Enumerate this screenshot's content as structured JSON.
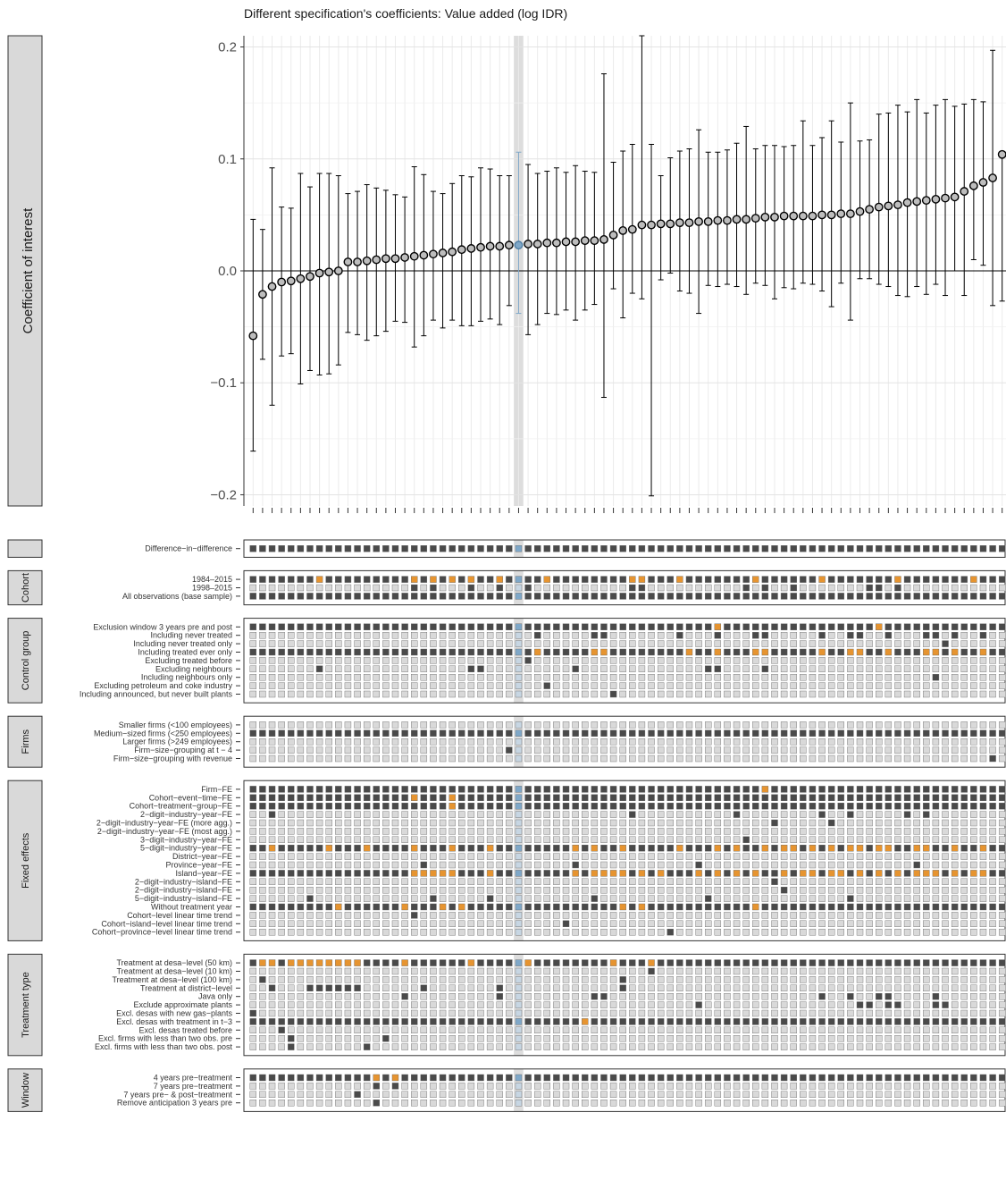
{
  "chart_data": {
    "type": "scatter",
    "title": "Different specification's coefficients: Value added (log IDR)",
    "ylabel": "Coefficient of interest",
    "ylim": [
      -0.21,
      0.21
    ],
    "yticks": [
      -0.2,
      -0.1,
      0.0,
      0.1,
      0.2
    ],
    "ytick_labels": [
      "−0.2",
      "−0.1",
      "0.0",
      "0.1",
      "0.2"
    ],
    "grid": true,
    "highlight_index": 28,
    "colors": {
      "point_fill": "#bdbdbd",
      "highlight": "#7fa8c9",
      "active": "#4a4a4a",
      "variant": "#e69430",
      "inactive": "#d9d9d9",
      "highlight_band": "#dddddd",
      "panel_strip": "#d9d9d9"
    },
    "series": [
      {
        "estimates": [
          -0.058,
          -0.021,
          -0.014,
          -0.01,
          -0.009,
          -0.007,
          -0.005,
          -0.002,
          -0.001,
          0.0,
          0.008,
          0.008,
          0.009,
          0.01,
          0.011,
          0.011,
          0.012,
          0.013,
          0.014,
          0.015,
          0.016,
          0.017,
          0.019,
          0.02,
          0.021,
          0.022,
          0.022,
          0.023,
          0.023,
          0.024,
          0.024,
          0.025,
          0.025,
          0.026,
          0.026,
          0.027,
          0.027,
          0.028,
          0.032,
          0.036,
          0.037,
          0.041,
          0.041,
          0.042,
          0.042,
          0.043,
          0.043,
          0.044,
          0.044,
          0.045,
          0.045,
          0.046,
          0.046,
          0.047,
          0.048,
          0.048,
          0.049,
          0.049,
          0.049,
          0.049,
          0.05,
          0.05,
          0.051,
          0.051,
          0.053,
          0.055,
          0.057,
          0.058,
          0.059,
          0.061,
          0.062,
          0.063,
          0.064,
          0.065,
          0.066,
          0.071,
          0.076,
          0.079,
          0.083,
          0.104
        ],
        "lower": [
          -0.161,
          -0.079,
          -0.12,
          -0.076,
          -0.074,
          -0.101,
          -0.089,
          -0.093,
          -0.092,
          -0.084,
          -0.055,
          -0.057,
          -0.062,
          -0.058,
          -0.054,
          -0.045,
          -0.046,
          -0.068,
          -0.058,
          -0.044,
          -0.051,
          -0.044,
          -0.049,
          -0.049,
          -0.045,
          -0.043,
          -0.048,
          -0.031,
          -0.038,
          -0.057,
          -0.048,
          -0.038,
          -0.039,
          -0.035,
          -0.044,
          -0.035,
          -0.03,
          -0.113,
          -0.016,
          -0.042,
          -0.02,
          -0.025,
          -0.201,
          -0.008,
          -0.002,
          -0.018,
          -0.02,
          -0.038,
          -0.013,
          -0.014,
          -0.012,
          -0.014,
          -0.021,
          -0.011,
          -0.013,
          -0.025,
          -0.015,
          -0.016,
          -0.011,
          -0.012,
          -0.018,
          -0.032,
          -0.011,
          -0.044,
          -0.007,
          -0.007,
          -0.012,
          -0.014,
          -0.022,
          -0.023,
          -0.014,
          -0.021,
          -0.012,
          -0.022,
          0.0,
          -0.022,
          0.01,
          0.005,
          -0.031,
          -0.027
        ],
        "upper": [
          0.046,
          0.037,
          0.092,
          0.057,
          0.056,
          0.087,
          0.075,
          0.087,
          0.087,
          0.085,
          0.069,
          0.071,
          0.077,
          0.074,
          0.072,
          0.068,
          0.066,
          0.093,
          0.086,
          0.071,
          0.069,
          0.078,
          0.085,
          0.084,
          0.092,
          0.091,
          0.085,
          0.085,
          0.106,
          0.095,
          0.087,
          0.089,
          0.092,
          0.088,
          0.094,
          0.089,
          0.088,
          0.176,
          0.097,
          0.107,
          0.113,
          0.213,
          0.113,
          0.085,
          0.101,
          0.107,
          0.109,
          0.126,
          0.106,
          0.106,
          0.108,
          0.114,
          0.129,
          0.109,
          0.112,
          0.112,
          0.111,
          0.112,
          0.134,
          0.112,
          0.119,
          0.134,
          0.115,
          0.15,
          0.116,
          0.117,
          0.14,
          0.141,
          0.148,
          0.142,
          0.153,
          0.141,
          0.148,
          0.153,
          0.147,
          0.149,
          0.153,
          0.151,
          0.197,
          0.104
        ]
      }
    ],
    "panels": [
      {
        "strip": "",
        "rows": [
          {
            "label": "Difference−in−difference",
            "mode": "all",
            "extra": [],
            "orange": []
          }
        ]
      },
      {
        "strip": "Cohort",
        "rows": [
          {
            "label": "1984–2015",
            "mode": "all",
            "extra": [],
            "orange": [
              7,
              17,
              19,
              21,
              23,
              26,
              31,
              40,
              41,
              45,
              53,
              60,
              68,
              76
            ]
          },
          {
            "label": "1998–2015",
            "mode": "none",
            "extra": [
              17,
              19,
              23,
              26,
              29,
              40,
              41,
              52,
              54,
              57,
              65,
              66,
              68
            ],
            "orange": []
          },
          {
            "label": "All observations (base sample)",
            "mode": "all",
            "extra": [],
            "orange": []
          }
        ]
      },
      {
        "strip": "Control group",
        "rows": [
          {
            "label": "Exclusion window 3 years pre and post",
            "mode": "all",
            "extra": [],
            "orange": [
              49,
              66
            ]
          },
          {
            "label": "Including never treated",
            "mode": "none",
            "extra": [
              30,
              36,
              37,
              45,
              49,
              53,
              54,
              60,
              63,
              64,
              67,
              71,
              72,
              74,
              77,
              80
            ],
            "orange": []
          },
          {
            "label": "Including never treated only",
            "mode": "none",
            "extra": [
              73
            ],
            "orange": []
          },
          {
            "label": "Including treated ever only",
            "mode": "all",
            "extra": [],
            "orange": [
              30,
              36,
              37,
              46,
              49,
              53,
              54,
              60,
              63,
              64,
              67,
              71,
              72,
              74,
              77,
              80
            ]
          },
          {
            "label": "Excluding treated before",
            "mode": "none",
            "extra": [
              29
            ],
            "orange": []
          },
          {
            "label": "Excluding neighbours",
            "mode": "none",
            "extra": [
              7,
              23,
              24,
              34,
              48,
              49,
              54
            ],
            "orange": []
          },
          {
            "label": "Including neighbours only",
            "mode": "none",
            "extra": [
              72
            ],
            "orange": []
          },
          {
            "label": "Excluding petroleum and coke industry",
            "mode": "none",
            "extra": [
              31
            ],
            "orange": []
          },
          {
            "label": "Including announced, but never built plants",
            "mode": "none",
            "extra": [
              38
            ],
            "orange": []
          }
        ]
      },
      {
        "strip": "Firms",
        "rows": [
          {
            "label": "Smaller firms (<100 employees)",
            "mode": "none",
            "extra": [],
            "orange": []
          },
          {
            "label": "Medium−sized firms (<250 employees)",
            "mode": "all",
            "extra": [],
            "orange": []
          },
          {
            "label": "Larger firms (>249 employees)",
            "mode": "none",
            "extra": [],
            "orange": []
          },
          {
            "label": "Firm−size−grouping at t − 4",
            "mode": "none",
            "extra": [
              27
            ],
            "orange": []
          },
          {
            "label": "Firm−size−grouping with revenue",
            "mode": "none",
            "extra": [
              78
            ],
            "orange": []
          }
        ]
      },
      {
        "strip": "Fixed effects",
        "rows": [
          {
            "label": "Firm−FE",
            "mode": "all",
            "extra": [],
            "orange": [
              54
            ]
          },
          {
            "label": "Cohort−event−time−FE",
            "mode": "all",
            "extra": [],
            "orange": [
              17,
              21
            ]
          },
          {
            "label": "Cohort−treatment−group−FE",
            "mode": "all",
            "extra": [],
            "orange": [
              21
            ]
          },
          {
            "label": "2−digit−industry−year−FE",
            "mode": "none",
            "extra": [
              2,
              40,
              51,
              60,
              63,
              69,
              71
            ],
            "orange": []
          },
          {
            "label": "2−digit−industry−year−FE (more agg.)",
            "mode": "none",
            "extra": [
              55,
              61
            ],
            "orange": []
          },
          {
            "label": "2−digit−industry−year−FE (most agg.)",
            "mode": "none",
            "extra": [],
            "orange": []
          },
          {
            "label": "3−digit−industry−year−FE",
            "mode": "none",
            "extra": [
              52
            ],
            "orange": []
          },
          {
            "label": "5−digit−industry−year−FE",
            "mode": "all",
            "extra": [],
            "orange": [
              2,
              8,
              12,
              17,
              21,
              25,
              34,
              36,
              39,
              45,
              49,
              51,
              54,
              56,
              57,
              59,
              61,
              63,
              64,
              66,
              67,
              70,
              71,
              74,
              77,
              80
            ]
          },
          {
            "label": "District−year−FE",
            "mode": "none",
            "extra": [],
            "orange": []
          },
          {
            "label": "Province−year−FE",
            "mode": "none",
            "extra": [
              18,
              34,
              47,
              70
            ],
            "orange": []
          },
          {
            "label": "Island−year−FE",
            "mode": "all",
            "extra": [],
            "orange": [
              17,
              18,
              19,
              20,
              21,
              25,
              34,
              36,
              37,
              38,
              39,
              41,
              43,
              47,
              49,
              51,
              53,
              56,
              58,
              59,
              61,
              62,
              64,
              66,
              68,
              70,
              71,
              72,
              74,
              76,
              77
            ]
          },
          {
            "label": "2−digit−industry−island−FE",
            "mode": "none",
            "extra": [
              55
            ],
            "orange": []
          },
          {
            "label": "2−digit−industry−island−FE",
            "mode": "none",
            "extra": [
              56
            ],
            "orange": []
          },
          {
            "label": "5−digit−industry−island−FE",
            "mode": "none",
            "extra": [
              6,
              19,
              25,
              36,
              48,
              63
            ],
            "orange": []
          },
          {
            "label": "Without treatment year",
            "mode": "all",
            "extra": [],
            "orange": [
              9,
              16,
              20,
              22,
              39,
              41,
              53
            ]
          },
          {
            "label": "Cohort−level linear time trend",
            "mode": "none",
            "extra": [
              17
            ],
            "orange": []
          },
          {
            "label": "Cohort−island−level linear time trend",
            "mode": "none",
            "extra": [
              33
            ],
            "orange": []
          },
          {
            "label": "Cohort−province−level linear time trend",
            "mode": "none",
            "extra": [
              44
            ],
            "orange": []
          }
        ]
      },
      {
        "strip": "Treatment type",
        "rows": [
          {
            "label": "Treatment at desa−level (50 km)",
            "mode": "all",
            "extra": [],
            "orange": [
              1,
              2,
              4,
              5,
              6,
              7,
              8,
              9,
              10,
              11,
              16,
              23,
              28,
              29,
              38,
              42
            ]
          },
          {
            "label": "Treatment at desa−level (10 km)",
            "mode": "none",
            "extra": [
              42
            ],
            "orange": []
          },
          {
            "label": "Treatment at desa−level (100 km)",
            "mode": "none",
            "extra": [
              1,
              39
            ],
            "orange": []
          },
          {
            "label": "Treatment at district−level",
            "mode": "none",
            "extra": [
              2,
              6,
              7,
              8,
              9,
              10,
              11,
              18,
              26,
              39
            ],
            "orange": []
          },
          {
            "label": "Java only",
            "mode": "none",
            "extra": [
              16,
              26,
              36,
              37,
              60,
              63,
              66,
              67,
              72
            ],
            "orange": []
          },
          {
            "label": "Exclude approximate plants",
            "mode": "none",
            "extra": [
              47,
              64,
              65,
              67,
              68,
              72,
              73
            ],
            "orange": []
          },
          {
            "label": "Excl. desas with new gas−plants",
            "mode": "none",
            "extra": [
              0
            ],
            "orange": []
          },
          {
            "label": "Excl. desas with treatment in t−3",
            "mode": "all",
            "extra": [],
            "orange": [
              35
            ]
          },
          {
            "label": "Excl. desas treated before",
            "mode": "none",
            "extra": [
              3
            ],
            "orange": []
          },
          {
            "label": "Excl. firms with less than two obs. pre",
            "mode": "none",
            "extra": [
              4,
              14
            ],
            "orange": []
          },
          {
            "label": "Excl. firms with less than two obs. post",
            "mode": "none",
            "extra": [
              4,
              12
            ],
            "orange": []
          }
        ]
      },
      {
        "strip": "Window",
        "rows": [
          {
            "label": "4 years pre−treatment",
            "mode": "all",
            "extra": [],
            "orange": [
              13,
              15
            ]
          },
          {
            "label": "7 years pre−treatment",
            "mode": "none",
            "extra": [
              13,
              15
            ],
            "orange": []
          },
          {
            "label": "7 years pre− & post−treatment",
            "mode": "none",
            "extra": [
              11
            ],
            "orange": []
          },
          {
            "label": "Remove anticipation 3 years pre",
            "mode": "none",
            "extra": [
              13
            ],
            "orange": []
          }
        ]
      }
    ]
  }
}
